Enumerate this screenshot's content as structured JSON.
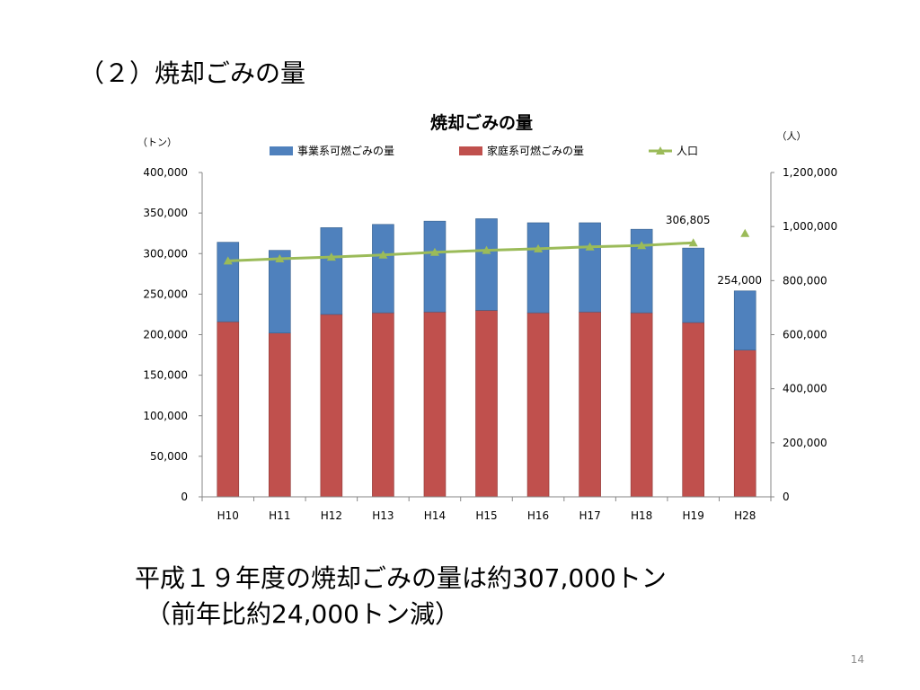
{
  "slide": {
    "title": "（２）焼却ごみの量",
    "summary_line1": "平成１９年度の焼却ごみの量は約307,000トン",
    "summary_line2": "（前年比約24,000トン減）",
    "page_number": "14"
  },
  "chart_data": {
    "type": "bar",
    "stacked": true,
    "title": "焼却ごみの量",
    "categories": [
      "H10",
      "H11",
      "H12",
      "H13",
      "H14",
      "H15",
      "H16",
      "H17",
      "H18",
      "H19",
      "H28"
    ],
    "left_axis": {
      "unit": "（トン）",
      "ylim": [
        0,
        400000
      ],
      "ticks": [
        "0",
        "50,000",
        "100,000",
        "150,000",
        "200,000",
        "250,000",
        "300,000",
        "350,000",
        "400,000"
      ]
    },
    "right_axis": {
      "unit": "（人）",
      "ylim": [
        0,
        1200000
      ],
      "ticks": [
        "0",
        "200,000",
        "400,000",
        "600,000",
        "800,000",
        "1,000,000",
        "1,200,000"
      ]
    },
    "series": [
      {
        "name": "家庭系可燃ごみの量",
        "type": "bar",
        "color": "#c0504d",
        "values": [
          216000,
          202000,
          225000,
          227000,
          228000,
          230000,
          227000,
          228000,
          227000,
          215000,
          181000
        ]
      },
      {
        "name": "事業系可燃ごみの量",
        "type": "bar",
        "color": "#4f81bd",
        "values": [
          98000,
          102000,
          107000,
          109000,
          112000,
          113000,
          111000,
          110000,
          103000,
          91805,
          73000
        ]
      },
      {
        "name": "人口",
        "type": "line",
        "axis": "right",
        "color": "#9bbb59",
        "values": [
          873000,
          881000,
          887000,
          895000,
          905000,
          912000,
          918000,
          925000,
          930000,
          940000,
          975000
        ]
      }
    ],
    "legend": {
      "placement": "top",
      "items": [
        "事業系可燃ごみの量",
        "家庭系可燃ごみの量",
        "人口"
      ]
    },
    "data_labels": [
      {
        "category": "H19",
        "text": "306,805"
      },
      {
        "category": "H28",
        "text": "254,000"
      }
    ],
    "grid": true
  }
}
